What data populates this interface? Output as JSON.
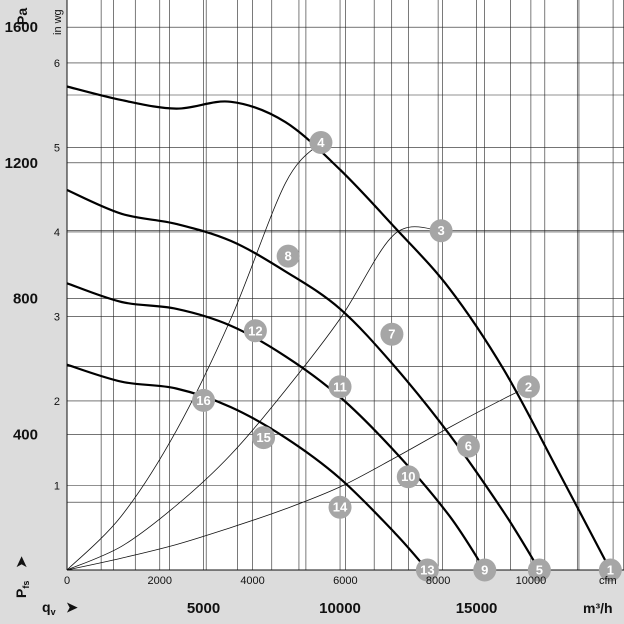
{
  "chart_data": {
    "type": "line",
    "title": "",
    "left_axis_unit": "Pa",
    "right_inner_axis_unit": "in wg",
    "y_axis_symbol": "P",
    "y_axis_symbol_sub": "fs",
    "x_axis_symbol": "q",
    "x_axis_symbol_sub": "v",
    "arrow_glyph": "➤",
    "x_unit_m3h": "m³/h",
    "x_unit_cfm": "cfm",
    "grid": true,
    "pa_ticks": [
      400,
      800,
      1200,
      1600
    ],
    "inwg_ticks": [
      1,
      2,
      3,
      4,
      5,
      6
    ],
    "m3h_ticks": [
      5000,
      10000,
      15000
    ],
    "cfm_ticks": [
      0,
      2000,
      4000,
      6000,
      8000,
      10000
    ],
    "xlim_m3h": [
      0,
      20400
    ],
    "ylim_pa": [
      0,
      1680
    ],
    "series": [
      {
        "values": [
          [
            0,
            1425
          ],
          [
            2000,
            1385
          ],
          [
            4000,
            1360
          ],
          [
            6000,
            1380
          ],
          [
            8000,
            1320
          ],
          [
            10000,
            1180
          ],
          [
            12000,
            1010
          ],
          [
            14000,
            830
          ],
          [
            16000,
            590
          ],
          [
            18000,
            290
          ],
          [
            19900,
            0
          ]
        ]
      },
      {
        "values": [
          [
            0,
            1120
          ],
          [
            2000,
            1050
          ],
          [
            4000,
            1020
          ],
          [
            6000,
            970
          ],
          [
            8000,
            880
          ],
          [
            10000,
            770
          ],
          [
            12000,
            600
          ],
          [
            14000,
            400
          ],
          [
            16000,
            170
          ],
          [
            17300,
            0
          ]
        ]
      },
      {
        "values": [
          [
            0,
            845
          ],
          [
            2000,
            790
          ],
          [
            4000,
            770
          ],
          [
            6000,
            720
          ],
          [
            8000,
            630
          ],
          [
            10000,
            510
          ],
          [
            12000,
            350
          ],
          [
            14000,
            160
          ],
          [
            15300,
            0
          ]
        ]
      },
      {
        "values": [
          [
            0,
            605
          ],
          [
            2000,
            555
          ],
          [
            4000,
            535
          ],
          [
            6000,
            480
          ],
          [
            8000,
            390
          ],
          [
            10000,
            270
          ],
          [
            12000,
            110
          ],
          [
            13200,
            0
          ]
        ]
      }
    ],
    "system_curves": [
      {
        "values": [
          [
            0,
            0
          ],
          [
            2000,
            35
          ],
          [
            4000,
            75
          ],
          [
            6000,
            125
          ],
          [
            8000,
            180
          ],
          [
            10000,
            245
          ],
          [
            12000,
            330
          ],
          [
            14000,
            420
          ],
          [
            16000,
            505
          ],
          [
            16900,
            540
          ]
        ]
      },
      {
        "values": [
          [
            0,
            0
          ],
          [
            2000,
            70
          ],
          [
            4000,
            190
          ],
          [
            6000,
            340
          ],
          [
            8000,
            530
          ],
          [
            10000,
            740
          ],
          [
            12000,
            990
          ],
          [
            13700,
            1000
          ]
        ]
      },
      {
        "values": [
          [
            0,
            0
          ],
          [
            2000,
            160
          ],
          [
            4000,
            410
          ],
          [
            6000,
            740
          ],
          [
            8000,
            1140
          ],
          [
            9300,
            1260
          ]
        ]
      }
    ],
    "markers": [
      {
        "label": "1",
        "x": 19900,
        "y": 0
      },
      {
        "label": "2",
        "x": 16900,
        "y": 540
      },
      {
        "label": "3",
        "x": 13700,
        "y": 1000
      },
      {
        "label": "4",
        "x": 9300,
        "y": 1260
      },
      {
        "label": "5",
        "x": 17300,
        "y": 0
      },
      {
        "label": "6",
        "x": 14700,
        "y": 365
      },
      {
        "label": "7",
        "x": 11900,
        "y": 695
      },
      {
        "label": "8",
        "x": 8100,
        "y": 925
      },
      {
        "label": "9",
        "x": 15300,
        "y": 0
      },
      {
        "label": "10",
        "x": 12500,
        "y": 275
      },
      {
        "label": "11",
        "x": 10000,
        "y": 540
      },
      {
        "label": "12",
        "x": 6900,
        "y": 705
      },
      {
        "label": "13",
        "x": 13200,
        "y": 0
      },
      {
        "label": "14",
        "x": 10000,
        "y": 185
      },
      {
        "label": "15",
        "x": 7200,
        "y": 390
      },
      {
        "label": "16",
        "x": 5000,
        "y": 500
      }
    ],
    "colors": {
      "background": "#dcdcdc",
      "plot": "#ffffff",
      "curve": "#000000",
      "marker": "#a6a6a6"
    }
  }
}
